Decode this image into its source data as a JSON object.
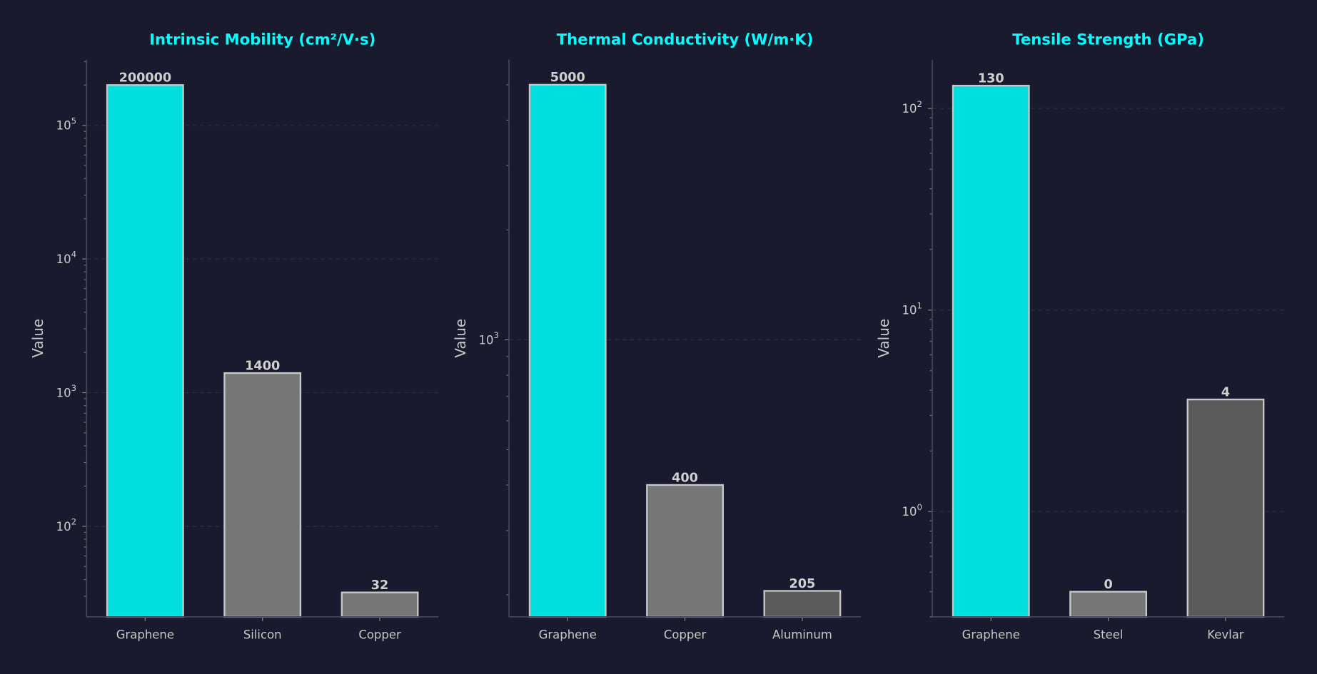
{
  "chart_data": [
    {
      "type": "bar",
      "title": "Intrinsic Mobility (cm²/V·s)",
      "ylabel": "Value",
      "yscale": "log",
      "ylim": [
        21,
        310000
      ],
      "grid": "y-dashed",
      "categories": [
        "Graphene",
        "Silicon",
        "Copper"
      ],
      "values": [
        200000,
        1400,
        32
      ],
      "value_labels": [
        "200000",
        "1400",
        "32"
      ],
      "colors": [
        "#00dede",
        "#777777",
        "#777777"
      ],
      "yticks": [
        {
          "value": 100,
          "base": "10",
          "exp": "2"
        },
        {
          "value": 1000,
          "base": "10",
          "exp": "3"
        },
        {
          "value": 10000,
          "base": "10",
          "exp": "4"
        },
        {
          "value": 100000,
          "base": "10",
          "exp": "5"
        }
      ]
    },
    {
      "type": "bar",
      "title": "Thermal Conductivity (W/m·K)",
      "ylabel": "Value",
      "yscale": "log",
      "ylim": [
        174,
        5860
      ],
      "grid": "y-dashed",
      "categories": [
        "Graphene",
        "Copper",
        "Aluminum"
      ],
      "values": [
        5000,
        400,
        205
      ],
      "value_labels": [
        "5000",
        "400",
        "205"
      ],
      "colors": [
        "#00dede",
        "#777777",
        "#5a5a5a"
      ],
      "yticks": [
        {
          "value": 1000,
          "base": "10",
          "exp": "3"
        }
      ]
    },
    {
      "type": "bar",
      "title": "Tensile Strength (GPa)",
      "ylabel": "Value",
      "yscale": "log",
      "ylim": [
        0.3,
        175
      ],
      "grid": "y-dashed",
      "categories": [
        "Graphene",
        "Steel",
        "Kevlar"
      ],
      "values": [
        130,
        0.4,
        3.6
      ],
      "value_labels": [
        "130",
        "0",
        "4"
      ],
      "colors": [
        "#00dede",
        "#777777",
        "#5a5a5a"
      ],
      "yticks": [
        {
          "value": 1,
          "base": "10",
          "exp": "0"
        },
        {
          "value": 10,
          "base": "10",
          "exp": "1"
        },
        {
          "value": 100,
          "base": "10",
          "exp": "2"
        }
      ]
    }
  ],
  "colors": {
    "background": "#1a1a2e",
    "title": "#00ffff",
    "bar_edge": "#c8c8c8",
    "axis": "#444455",
    "grid": "#2c2c44"
  }
}
